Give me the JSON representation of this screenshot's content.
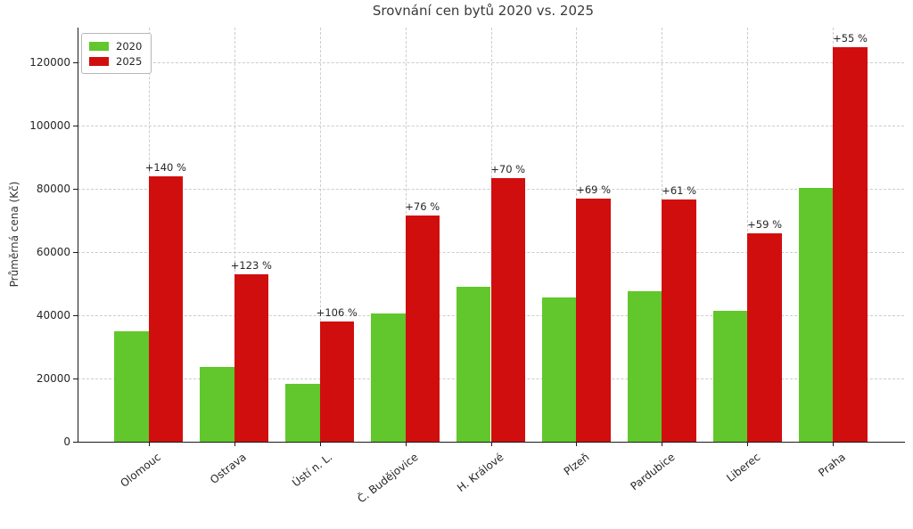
{
  "chart_data": {
    "type": "bar",
    "title": "Srovnání cen bytů 2020 vs. 2025",
    "xlabel": "",
    "ylabel": "Průměrná cena (Kč)",
    "categories": [
      "Olomouc",
      "Ostrava",
      "Ústí n. L.",
      "Č. Budějovice",
      "H. Králové",
      "Plzeň",
      "Pardubice",
      "Liberec",
      "Praha"
    ],
    "series": [
      {
        "name": "2020",
        "color": "#61c72c",
        "values": [
          35000,
          23700,
          18400,
          40700,
          49000,
          45500,
          47600,
          41400,
          80300
        ]
      },
      {
        "name": "2025",
        "color": "#d10e0e",
        "values": [
          84000,
          52900,
          37900,
          71600,
          83300,
          76900,
          76600,
          65800,
          124700
        ]
      }
    ],
    "annotations": [
      "+140 %",
      "+123 %",
      "+106 %",
      "+76 %",
      "+70 %",
      "+69 %",
      "+61 %",
      "+59 %",
      "+55 %"
    ],
    "ylim": [
      0,
      131000
    ],
    "yticks": [
      0,
      20000,
      40000,
      60000,
      80000,
      100000,
      120000
    ],
    "grid": "dashed-both-axes",
    "legend_position": "upper-left",
    "colors": {
      "grid": "#cccccc",
      "spine": "#1a1a1a",
      "text": "#262626",
      "background": "#ffffff"
    }
  }
}
